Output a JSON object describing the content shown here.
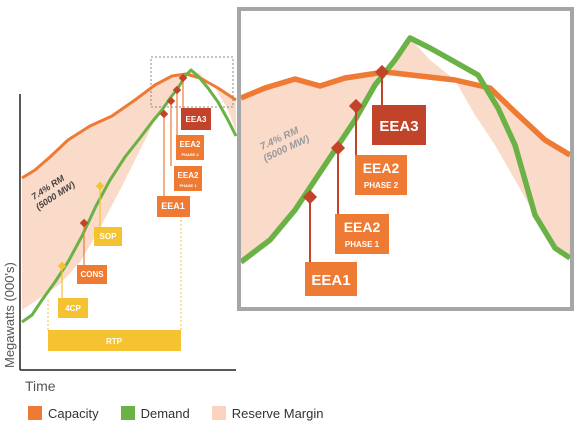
{
  "chart_data": {
    "type": "line",
    "xlabel": "Time",
    "ylabel": "Megawatts (000's)",
    "series": [
      {
        "name": "Capacity",
        "color": "#ee7a34"
      },
      {
        "name": "Demand",
        "color": "#6ab246"
      },
      {
        "name": "Reserve Margin",
        "color": "#f9d3be"
      }
    ],
    "reserve_margin_note": [
      "7.4% RM",
      "(5000 MW)"
    ],
    "zoom_reserve_margin_note": [
      "7.4% RM",
      "(5000 MW)"
    ],
    "markers": [
      {
        "label": "4CP",
        "color": "#f5c231"
      },
      {
        "label": "CONS",
        "color": "#ee7a34"
      },
      {
        "label": "SOP",
        "color": "#f5c231"
      },
      {
        "label": "EEA1",
        "color": "#ee7a34"
      },
      {
        "label": "EEA2",
        "sublabel": "PHASE 1",
        "color": "#ee7a34"
      },
      {
        "label": "EEA2",
        "sublabel": "PHASE 2",
        "color": "#ee7a34"
      },
      {
        "label": "EEA3",
        "color": "#c0432a"
      }
    ],
    "rtp_bar": {
      "label": "RTP",
      "color": "#f5c231"
    },
    "zoom_markers": [
      {
        "label": "EEA1",
        "color": "#ee7a34"
      },
      {
        "label": "EEA2",
        "sublabel": "PHASE 1",
        "color": "#ee7a34"
      },
      {
        "label": "EEA2",
        "sublabel": "PHASE 2",
        "color": "#ee7a34"
      },
      {
        "label": "EEA3",
        "color": "#c0432a"
      }
    ]
  },
  "legend": [
    {
      "label": "Capacity",
      "color": "#ee7a34"
    },
    {
      "label": "Demand",
      "color": "#6ab246"
    },
    {
      "label": "Reserve Margin",
      "color": "#f9d3be"
    }
  ]
}
